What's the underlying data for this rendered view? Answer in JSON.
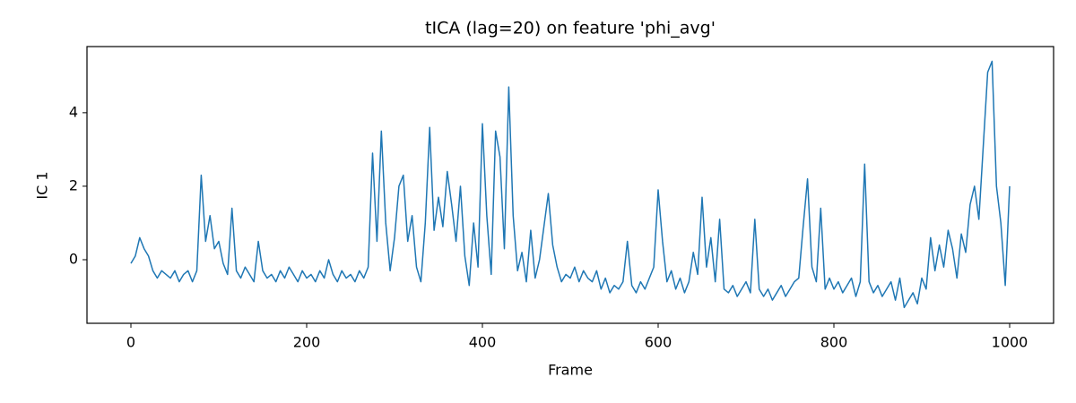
{
  "chart_data": {
    "type": "line",
    "title": "tICA (lag=20) on feature 'phi_avg'",
    "xlabel": "Frame",
    "ylabel": "IC 1",
    "x": [
      0,
      5,
      10,
      15,
      20,
      25,
      30,
      35,
      40,
      45,
      50,
      55,
      60,
      65,
      70,
      75,
      80,
      85,
      90,
      95,
      100,
      105,
      110,
      115,
      120,
      125,
      130,
      135,
      140,
      145,
      150,
      155,
      160,
      165,
      170,
      175,
      180,
      185,
      190,
      195,
      200,
      205,
      210,
      215,
      220,
      225,
      230,
      235,
      240,
      245,
      250,
      255,
      260,
      265,
      270,
      275,
      280,
      285,
      290,
      295,
      300,
      305,
      310,
      315,
      320,
      325,
      330,
      335,
      340,
      345,
      350,
      355,
      360,
      365,
      370,
      375,
      380,
      385,
      390,
      395,
      400,
      405,
      410,
      415,
      420,
      425,
      430,
      435,
      440,
      445,
      450,
      455,
      460,
      465,
      470,
      475,
      480,
      485,
      490,
      495,
      500,
      505,
      510,
      515,
      520,
      525,
      530,
      535,
      540,
      545,
      550,
      555,
      560,
      565,
      570,
      575,
      580,
      585,
      590,
      595,
      600,
      605,
      610,
      615,
      620,
      625,
      630,
      635,
      640,
      645,
      650,
      655,
      660,
      665,
      670,
      675,
      680,
      685,
      690,
      695,
      700,
      705,
      710,
      715,
      720,
      725,
      730,
      735,
      740,
      745,
      750,
      755,
      760,
      765,
      770,
      775,
      780,
      785,
      790,
      795,
      800,
      805,
      810,
      815,
      820,
      825,
      830,
      835,
      840,
      845,
      850,
      855,
      860,
      865,
      870,
      875,
      880,
      885,
      890,
      895,
      900,
      905,
      910,
      915,
      920,
      925,
      930,
      935,
      940,
      945,
      950,
      955,
      960,
      965,
      970,
      975,
      980,
      985,
      990,
      995,
      1000
    ],
    "series": [
      {
        "name": "IC 1",
        "color": "#1f77b4",
        "values": [
          -0.1,
          0.1,
          0.6,
          0.3,
          0.1,
          -0.3,
          -0.5,
          -0.3,
          -0.4,
          -0.5,
          -0.3,
          -0.6,
          -0.4,
          -0.3,
          -0.6,
          -0.3,
          2.3,
          0.5,
          1.2,
          0.3,
          0.5,
          -0.1,
          -0.4,
          1.4,
          -0.3,
          -0.5,
          -0.2,
          -0.4,
          -0.6,
          0.5,
          -0.3,
          -0.5,
          -0.4,
          -0.6,
          -0.3,
          -0.5,
          -0.2,
          -0.4,
          -0.6,
          -0.3,
          -0.5,
          -0.4,
          -0.6,
          -0.3,
          -0.5,
          0.0,
          -0.4,
          -0.6,
          -0.3,
          -0.5,
          -0.4,
          -0.6,
          -0.3,
          -0.5,
          -0.2,
          2.9,
          0.5,
          3.5,
          1.0,
          -0.3,
          0.6,
          2.0,
          2.3,
          0.5,
          1.2,
          -0.2,
          -0.6,
          1.0,
          3.6,
          0.8,
          1.7,
          0.9,
          2.4,
          1.5,
          0.5,
          2.0,
          0.1,
          -0.7,
          1.0,
          -0.2,
          3.7,
          1.2,
          -0.4,
          3.5,
          2.8,
          0.3,
          4.7,
          1.2,
          -0.3,
          0.2,
          -0.6,
          0.8,
          -0.5,
          0.0,
          0.9,
          1.8,
          0.4,
          -0.2,
          -0.6,
          -0.4,
          -0.5,
          -0.2,
          -0.6,
          -0.3,
          -0.5,
          -0.6,
          -0.3,
          -0.8,
          -0.5,
          -0.9,
          -0.7,
          -0.8,
          -0.6,
          0.5,
          -0.7,
          -0.9,
          -0.6,
          -0.8,
          -0.5,
          -0.2,
          1.9,
          0.5,
          -0.6,
          -0.3,
          -0.8,
          -0.5,
          -0.9,
          -0.6,
          0.2,
          -0.4,
          1.7,
          -0.2,
          0.6,
          -0.6,
          1.1,
          -0.8,
          -0.9,
          -0.7,
          -1.0,
          -0.8,
          -0.6,
          -0.9,
          1.1,
          -0.8,
          -1.0,
          -0.8,
          -1.1,
          -0.9,
          -0.7,
          -1.0,
          -0.8,
          -0.6,
          -0.5,
          0.9,
          2.2,
          -0.2,
          -0.6,
          1.4,
          -0.8,
          -0.5,
          -0.8,
          -0.6,
          -0.9,
          -0.7,
          -0.5,
          -1.0,
          -0.6,
          2.6,
          -0.6,
          -0.9,
          -0.7,
          -1.0,
          -0.8,
          -0.6,
          -1.1,
          -0.5,
          -1.3,
          -1.1,
          -0.9,
          -1.2,
          -0.5,
          -0.8,
          0.6,
          -0.3,
          0.4,
          -0.2,
          0.8,
          0.3,
          -0.5,
          0.7,
          0.2,
          1.5,
          2.0,
          1.1,
          3.1,
          5.1,
          5.4,
          2.0,
          1.0,
          -0.7,
          2.0
        ]
      }
    ],
    "xlim": [
      -50,
      1050
    ],
    "ylim": [
      -1.73,
      5.8
    ],
    "xticks": [
      0,
      200,
      400,
      600,
      800,
      1000
    ],
    "yticks": [
      0,
      2,
      4
    ]
  }
}
